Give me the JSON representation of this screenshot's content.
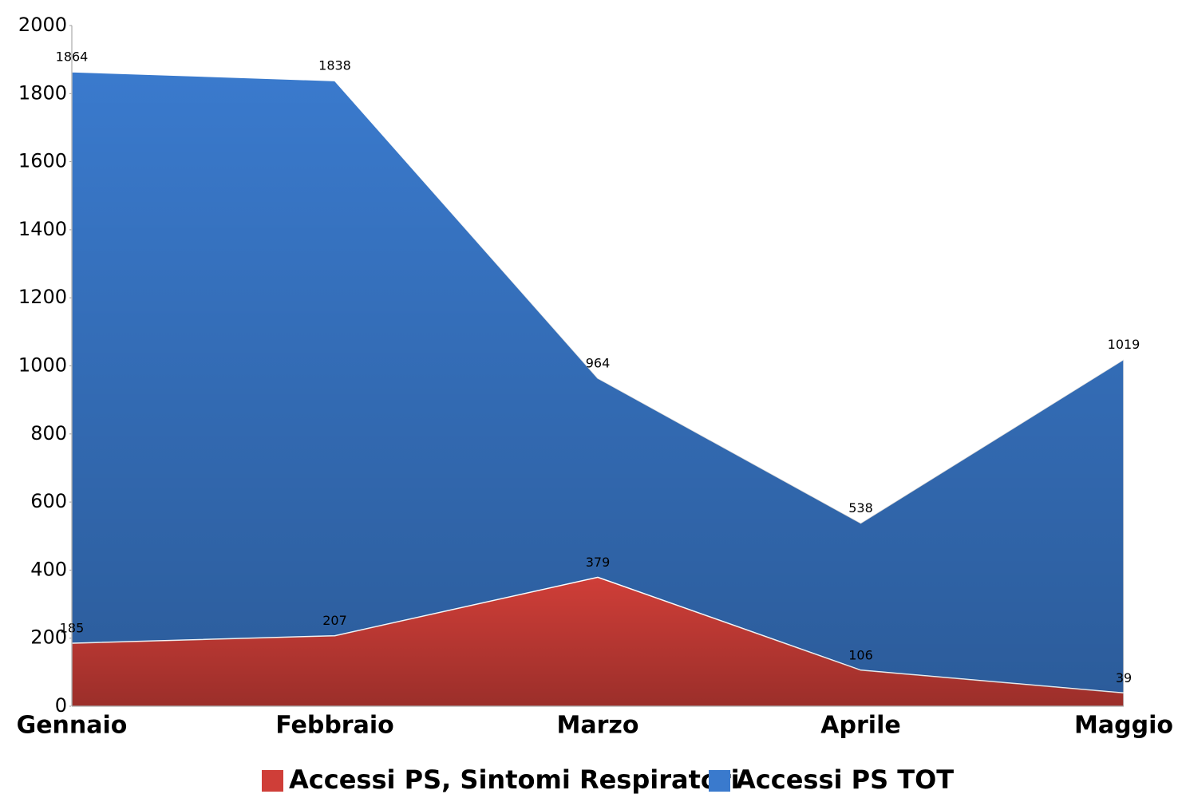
{
  "chart_data": {
    "type": "area",
    "categories": [
      "Gennaio",
      "Febbraio",
      "Marzo",
      "Aprile",
      "Maggio"
    ],
    "series": [
      {
        "name": "Accessi PS, Sintomi Respiratori",
        "color": "#cf3e38",
        "values": [
          185,
          207,
          379,
          106,
          39
        ]
      },
      {
        "name": "Accessi PS TOT",
        "color": "#3a7acd",
        "values": [
          1864,
          1838,
          964,
          538,
          1019
        ]
      }
    ],
    "ylim": [
      0,
      2000
    ],
    "yticks": [
      0,
      200,
      400,
      600,
      800,
      1000,
      1200,
      1400,
      1600,
      1800,
      2000
    ],
    "grid": false,
    "legend": "bottom"
  }
}
